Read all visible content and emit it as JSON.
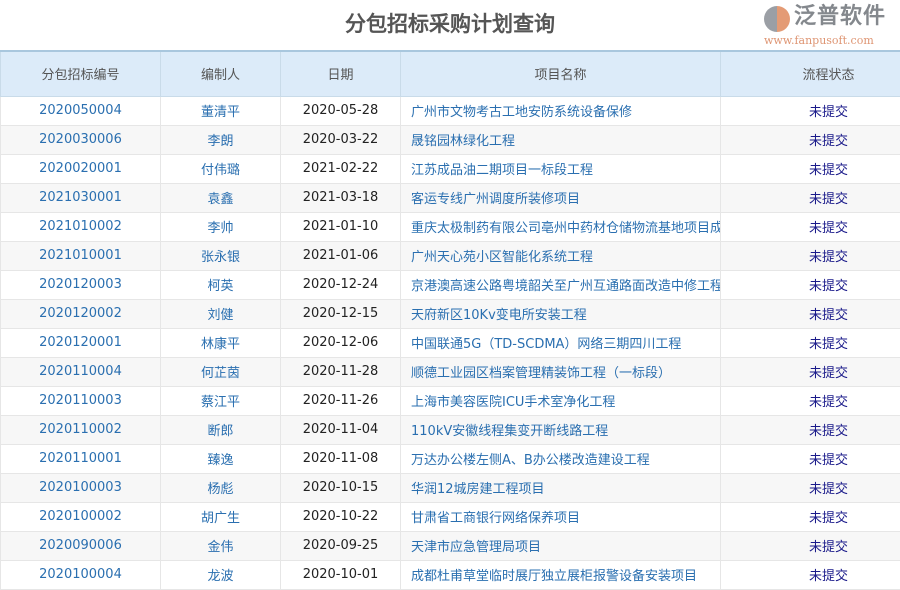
{
  "title": "分包招标采购计划查询",
  "columns": [
    "分包招标编号",
    "编制人",
    "日期",
    "项目名称",
    "流程状态"
  ],
  "rows": [
    [
      "2020050004",
      "董清平",
      "2020-05-28",
      "广州市文物考古工地安防系统设备保修",
      "未提交"
    ],
    [
      "2020030006",
      "李朗",
      "2020-03-22",
      "晟铭园林绿化工程",
      "未提交"
    ],
    [
      "2020020001",
      "付伟璐",
      "2021-02-22",
      "江苏成品油二期项目一标段工程",
      "未提交"
    ],
    [
      "2021030001",
      "袁鑫",
      "2021-03-18",
      "客运专线广州调度所装修项目",
      "未提交"
    ],
    [
      "2021010002",
      "李帅",
      "2021-01-10",
      "重庆太极制药有限公司亳州中药材仓储物流基地项目成",
      "未提交"
    ],
    [
      "2021010001",
      "张永银",
      "2021-01-06",
      "广州天心苑小区智能化系统工程",
      "未提交"
    ],
    [
      "2020120003",
      "柯英",
      "2020-12-24",
      "京港澳高速公路粤境韶关至广州互通路面改造中修工程",
      "未提交"
    ],
    [
      "2020120002",
      "刘健",
      "2020-12-15",
      "天府新区10Kv变电所安装工程",
      "未提交"
    ],
    [
      "2020120001",
      "林康平",
      "2020-12-06",
      "中国联通5G（TD-SCDMA）网络三期四川工程",
      "未提交"
    ],
    [
      "2020110004",
      "何芷茵",
      "2020-11-28",
      "顺德工业园区档案管理精装饰工程（一标段）",
      "未提交"
    ],
    [
      "2020110003",
      "蔡江平",
      "2020-11-26",
      "上海市美容医院ICU手术室净化工程",
      "未提交"
    ],
    [
      "2020110002",
      "断郎",
      "2020-11-04",
      "110kV安徽线程集变开断线路工程",
      "未提交"
    ],
    [
      "2020110001",
      "臻逸",
      "2020-11-08",
      "万达办公楼左侧A、B办公楼改造建设工程",
      "未提交"
    ],
    [
      "2020100003",
      "杨彪",
      "2020-10-15",
      "华润12城房建工程项目",
      "未提交"
    ],
    [
      "2020100002",
      "胡广生",
      "2020-10-22",
      "甘肃省工商银行网络保养项目",
      "未提交"
    ],
    [
      "2020090006",
      "金伟",
      "2020-09-25",
      "天津市应急管理局项目",
      "未提交"
    ],
    [
      "2020100004",
      "龙波",
      "2020-10-01",
      "成都杜甫草堂临时展厅独立展柜报警设备安装项目",
      "未提交"
    ]
  ],
  "watermark": {
    "brand": "泛普软件",
    "url": "www.fanpusoft.com"
  }
}
